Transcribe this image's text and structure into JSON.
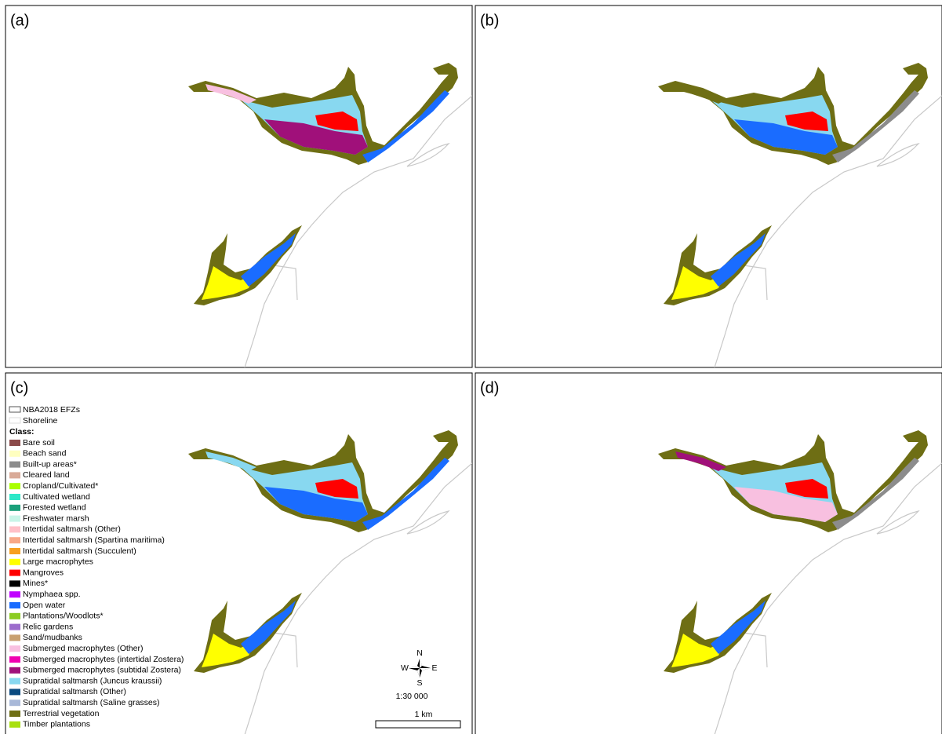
{
  "panels": [
    {
      "label": "(a)"
    },
    {
      "label": "(b)"
    },
    {
      "label": "(c)"
    },
    {
      "label": "(d)"
    }
  ],
  "legend": {
    "layers": [
      "NBA2018 EFZs",
      "Shoreline"
    ],
    "title": "Class:",
    "items": [
      {
        "label": "Bare soil",
        "color": "#8b4a4a"
      },
      {
        "label": "Beach sand",
        "color": "#ffffc0"
      },
      {
        "label": "Built-up areas*",
        "color": "#8c8c8c"
      },
      {
        "label": "Cleared land",
        "color": "#d9aa98"
      },
      {
        "label": "Cropland/Cultivated*",
        "color": "#aaff00"
      },
      {
        "label": "Cultivated wetland",
        "color": "#2de8c8"
      },
      {
        "label": "Forested wetland",
        "color": "#1aa07a"
      },
      {
        "label": "Freshwater marsh",
        "color": "#c8f5e8"
      },
      {
        "label": "Intertidal saltmarsh (Other)",
        "color": "#ffc0c8"
      },
      {
        "label": "Intertidal saltmarsh (Spartina maritima)",
        "color": "#f8a888"
      },
      {
        "label": "Intertidal saltmarsh (Succulent)",
        "color": "#f7a020"
      },
      {
        "label": "Large macrophytes",
        "color": "#ffff00"
      },
      {
        "label": "Mangroves",
        "color": "#ff0000"
      },
      {
        "label": "Mines*",
        "color": "#000000"
      },
      {
        "label": "Nymphaea spp.",
        "color": "#c000ff"
      },
      {
        "label": "Open water",
        "color": "#1a6cff"
      },
      {
        "label": "Plantations/Woodlots*",
        "color": "#8ccc22"
      },
      {
        "label": "Relic gardens",
        "color": "#9c6ccc"
      },
      {
        "label": "Sand/mudbanks",
        "color": "#c8a070"
      },
      {
        "label": "Submerged macrophytes (Other)",
        "color": "#f8c0e0"
      },
      {
        "label": "Submerged macrophytes (intertidal Zostera)",
        "color": "#f000b0"
      },
      {
        "label": "Submerged macrophytes (subtidal Zostera)",
        "color": "#a0107a"
      },
      {
        "label": "Supratidal saltmarsh (Juncus kraussii)",
        "color": "#88d8f0"
      },
      {
        "label": "Supratidal saltmarsh (Other)",
        "color": "#0a4a80"
      },
      {
        "label": "Supratidal saltmarsh (Saline grasses)",
        "color": "#a8b8d8"
      },
      {
        "label": "Terrestrial vegetation",
        "color": "#6e6e14"
      },
      {
        "label": "Timber plantations",
        "color": "#a8e010"
      }
    ]
  },
  "compass": {
    "n": "N",
    "s": "S",
    "e": "E",
    "w": "W"
  },
  "scale": "1:30 000",
  "scalebar": "1 km"
}
